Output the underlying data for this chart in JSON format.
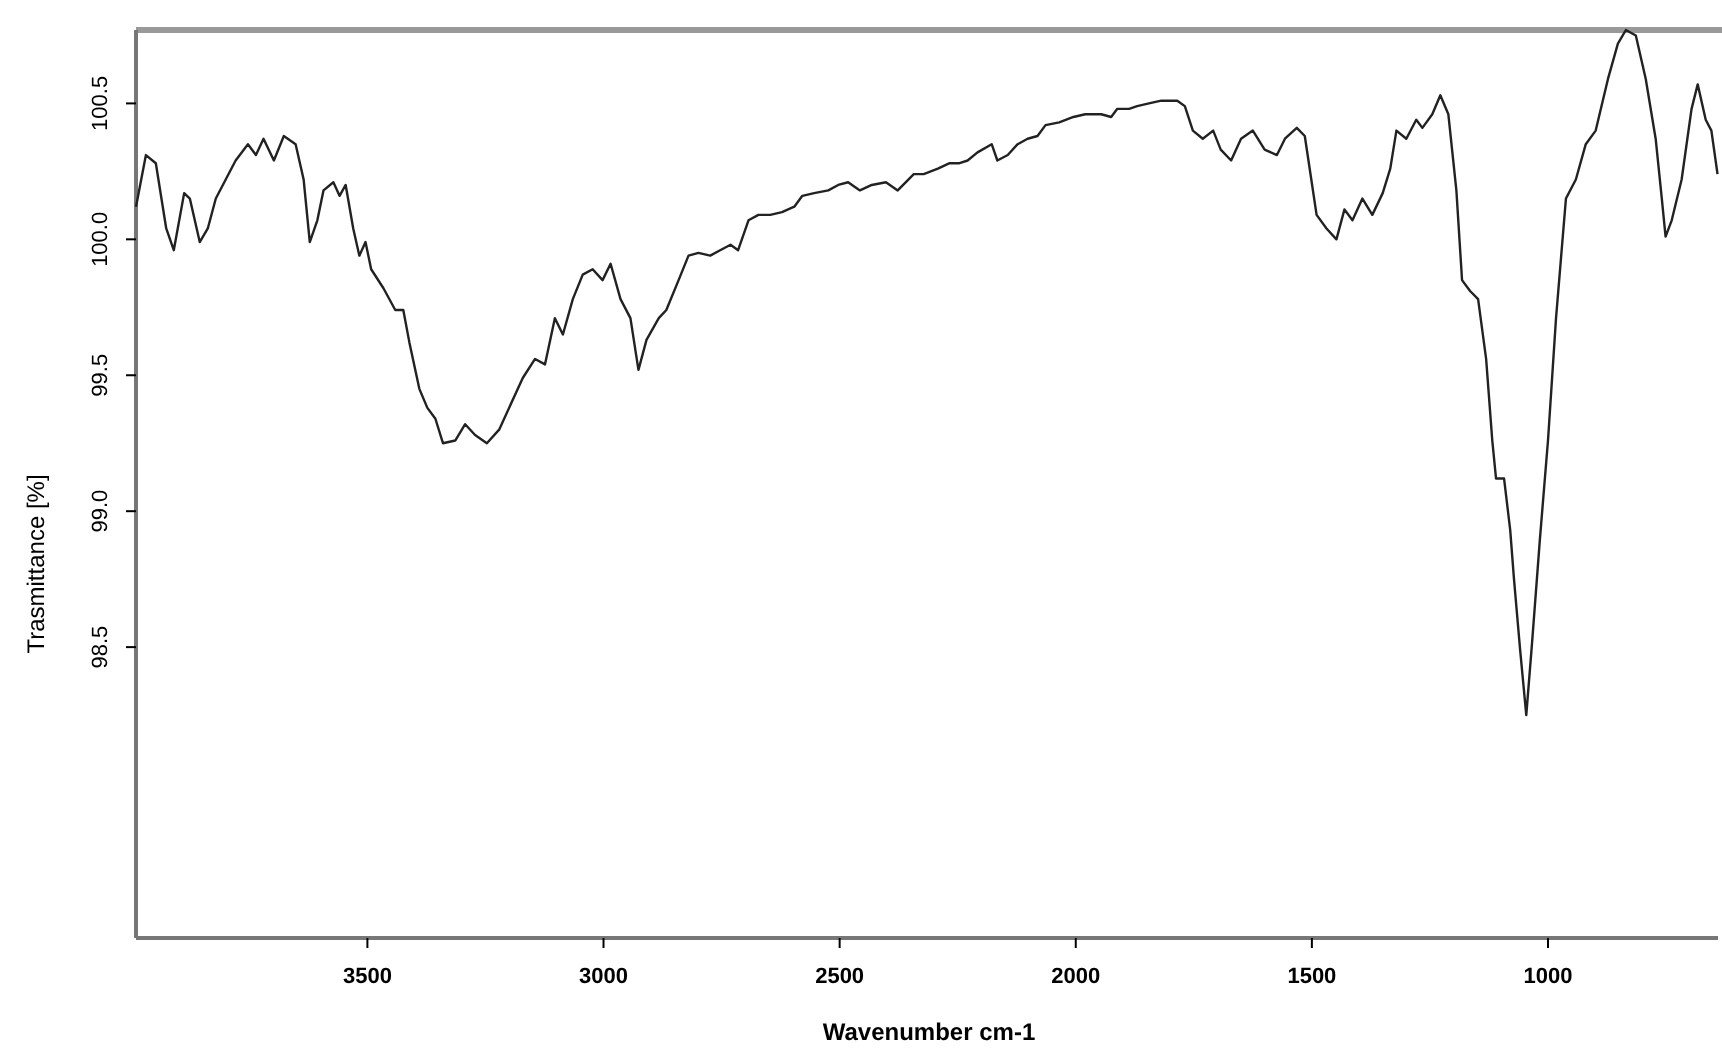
{
  "chart_data": {
    "type": "line",
    "xlabel": "Wavenumber cm-1",
    "ylabel": "Trasmittance [%]",
    "xlim": [
      3990,
      640
    ],
    "ylim": [
      97.43,
      100.77
    ],
    "xticks": [
      3500,
      3000,
      2500,
      2000,
      1500,
      1000
    ],
    "yticks": [
      {
        "value": 98.5,
        "label": "98.5"
      },
      {
        "value": 99,
        "label": "99.0"
      },
      {
        "value": 99.5,
        "label": "99.5"
      },
      {
        "value": 100,
        "label": "100.0"
      },
      {
        "value": 100.5,
        "label": "100.5"
      }
    ],
    "marker": "none",
    "line_style": "solid",
    "series": [
      {
        "color": "#222222",
        "x": [
          3990,
          3969,
          3948,
          3926,
          3910,
          3888,
          3876,
          3855,
          3838,
          3821,
          3800,
          3779,
          3753,
          3736,
          3720,
          3698,
          3677,
          3652,
          3635,
          3622,
          3606,
          3593,
          3572,
          3559,
          3546,
          3530,
          3517,
          3504,
          3492,
          3466,
          3441,
          3424,
          3411,
          3390,
          3373,
          3356,
          3340,
          3314,
          3293,
          3272,
          3247,
          3221,
          3200,
          3171,
          3145,
          3124,
          3103,
          3086,
          3065,
          3044,
          3023,
          3002,
          2985,
          2964,
          2943,
          2926,
          2909,
          2883,
          2867,
          2841,
          2820,
          2799,
          2774,
          2753,
          2731,
          2715,
          2693,
          2672,
          2647,
          2622,
          2596,
          2579,
          2554,
          2524,
          2503,
          2482,
          2457,
          2432,
          2402,
          2377,
          2343,
          2322,
          2292,
          2267,
          2246,
          2229,
          2208,
          2178,
          2166,
          2144,
          2123,
          2102,
          2081,
          2064,
          2035,
          2005,
          1980,
          1946,
          1925,
          1912,
          1887,
          1870,
          1845,
          1819,
          1785,
          1769,
          1752,
          1731,
          1709,
          1693,
          1671,
          1650,
          1625,
          1600,
          1574,
          1557,
          1532,
          1515,
          1490,
          1469,
          1448,
          1431,
          1414,
          1393,
          1372,
          1350,
          1334,
          1321,
          1300,
          1279,
          1266,
          1245,
          1228,
          1211,
          1194,
          1182,
          1165,
          1148,
          1131,
          1118,
          1110,
          1093,
          1080,
          1072,
          1059,
          1046,
          1034,
          1017,
          1000,
          983,
          962,
          941,
          920,
          899,
          873,
          852,
          835,
          814,
          793,
          772,
          759,
          751,
          738,
          717,
          696,
          683,
          666,
          654,
          641
        ],
        "values": [
          100.12,
          100.31,
          100.28,
          100.04,
          99.96,
          100.17,
          100.15,
          99.99,
          100.04,
          100.15,
          100.22,
          100.29,
          100.35,
          100.31,
          100.37,
          100.29,
          100.38,
          100.35,
          100.22,
          99.99,
          100.07,
          100.18,
          100.21,
          100.16,
          100.2,
          100.04,
          99.94,
          99.99,
          99.89,
          99.82,
          99.74,
          99.74,
          99.62,
          99.45,
          99.38,
          99.34,
          99.25,
          99.26,
          99.32,
          99.28,
          99.25,
          99.3,
          99.38,
          99.49,
          99.56,
          99.54,
          99.71,
          99.65,
          99.78,
          99.87,
          99.89,
          99.85,
          99.91,
          99.78,
          99.71,
          99.52,
          99.63,
          99.71,
          99.74,
          99.85,
          99.94,
          99.95,
          99.94,
          99.96,
          99.98,
          99.96,
          100.07,
          100.09,
          100.09,
          100.1,
          100.12,
          100.16,
          100.17,
          100.18,
          100.2,
          100.21,
          100.18,
          100.2,
          100.21,
          100.18,
          100.24,
          100.24,
          100.26,
          100.28,
          100.28,
          100.29,
          100.32,
          100.35,
          100.29,
          100.31,
          100.35,
          100.37,
          100.38,
          100.42,
          100.43,
          100.45,
          100.46,
          100.46,
          100.45,
          100.48,
          100.48,
          100.49,
          100.5,
          100.51,
          100.51,
          100.49,
          100.4,
          100.37,
          100.4,
          100.33,
          100.29,
          100.37,
          100.4,
          100.33,
          100.31,
          100.37,
          100.41,
          100.38,
          100.09,
          100.04,
          100,
          100.11,
          100.07,
          100.15,
          100.09,
          100.17,
          100.26,
          100.4,
          100.37,
          100.44,
          100.41,
          100.46,
          100.53,
          100.46,
          100.18,
          99.85,
          99.81,
          99.78,
          99.56,
          99.26,
          99.12,
          99.12,
          98.93,
          98.75,
          98.49,
          98.25,
          98.51,
          98.9,
          99.26,
          99.71,
          100.15,
          100.22,
          100.35,
          100.4,
          100.59,
          100.72,
          100.77,
          100.75,
          100.59,
          100.37,
          100.15,
          100.01,
          100.07,
          100.22,
          100.48,
          100.57,
          100.44,
          100.4,
          100.24
        ]
      }
    ]
  }
}
